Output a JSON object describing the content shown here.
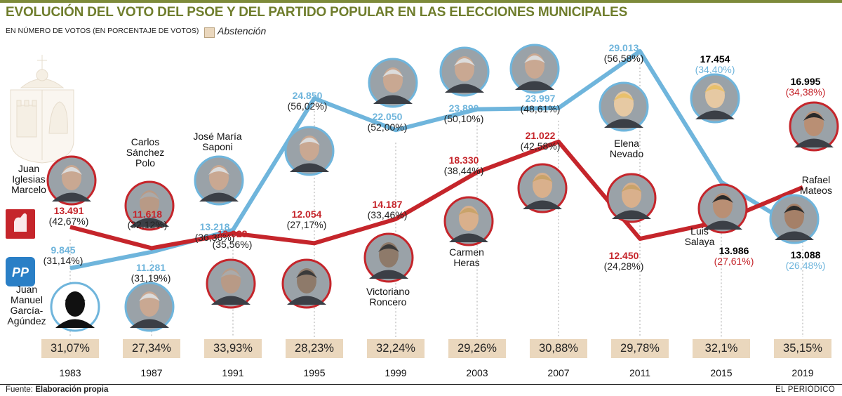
{
  "title": "EVOLUCIÓN DEL VOTO DEL PSOE Y DEL PARTIDO POPULAR EN LAS ELECCIONES MUNICIPALES",
  "subtitle": "EN NÚMERO DE VOTOS (EN PORCENTAJE DE VOTOS)",
  "legend_abstention": "Abstención",
  "source_label": "Fuente:",
  "source_value": "Elaboración propia",
  "publisher": "EL PERIÓDICO",
  "colors": {
    "pp": "#6fb5dc",
    "psoe": "#c5252b",
    "abstention": "#ead7bd",
    "title": "#6f7d2c"
  },
  "chart_data": {
    "type": "line",
    "x": [
      "1983",
      "1987",
      "1991",
      "1995",
      "1999",
      "2003",
      "2007",
      "2011",
      "2015",
      "2019"
    ],
    "series": [
      {
        "name": "PP",
        "values": [
          9845,
          11281,
          13218,
          24850,
          22050,
          23890,
          23997,
          29013,
          17454,
          13088
        ],
        "labels": [
          "9.845",
          "11.281",
          "13.218",
          "24.850",
          "22.050",
          "23.890",
          "23.997",
          "29.013",
          "17.454",
          "13.088"
        ],
        "percent_labels": [
          "(31,14%)",
          "(31,19%)",
          "(36,36%)",
          "(56,02%)",
          "(52,00%)",
          "(50,10%)",
          "(48,61%)",
          "(56,58%)",
          "(34,40%)",
          "(26,48%)"
        ]
      },
      {
        "name": "PSOE",
        "values": [
          13491,
          11618,
          12928,
          12054,
          14187,
          18330,
          21022,
          12450,
          13986,
          16995
        ],
        "labels": [
          "13.491",
          "11.618",
          "12.928",
          "12.054",
          "14.187",
          "18.330",
          "21.022",
          "12.450",
          "13.986",
          "16.995"
        ],
        "percent_labels": [
          "(42,67%)",
          "(32,12%)",
          "(35,56%)",
          "(27,17%)",
          "(33,46%)",
          "(38,44%)",
          "(42,58%)",
          "(24,28%)",
          "(27,61%)",
          "(34,38%)"
        ]
      }
    ],
    "abstention_labels": [
      "31,07%",
      "27,34%",
      "33,93%",
      "28,23%",
      "32,24%",
      "29,26%",
      "30,88%",
      "29,78%",
      "32,1%",
      "35,15%"
    ],
    "abstention_values": [
      31.07,
      27.34,
      33.93,
      28.23,
      32.24,
      29.26,
      30.88,
      29.78,
      32.1,
      35.15
    ]
  },
  "candidates": {
    "iglesias": "Juan\nIglesias\nMarcelo",
    "sanchez": "Carlos\nSánchez\nPolo",
    "saponi": "José María\nSaponi",
    "garcia": "Juan\nManuel\nGarcía-\nAgúndez",
    "roncero": "Victoriano\nRoncero",
    "heras": "Carmen\nHeras",
    "nevado": "Elena\nNevado",
    "salaya": "Luis\nSalaya",
    "mateos": "Rafael\nMateos"
  }
}
